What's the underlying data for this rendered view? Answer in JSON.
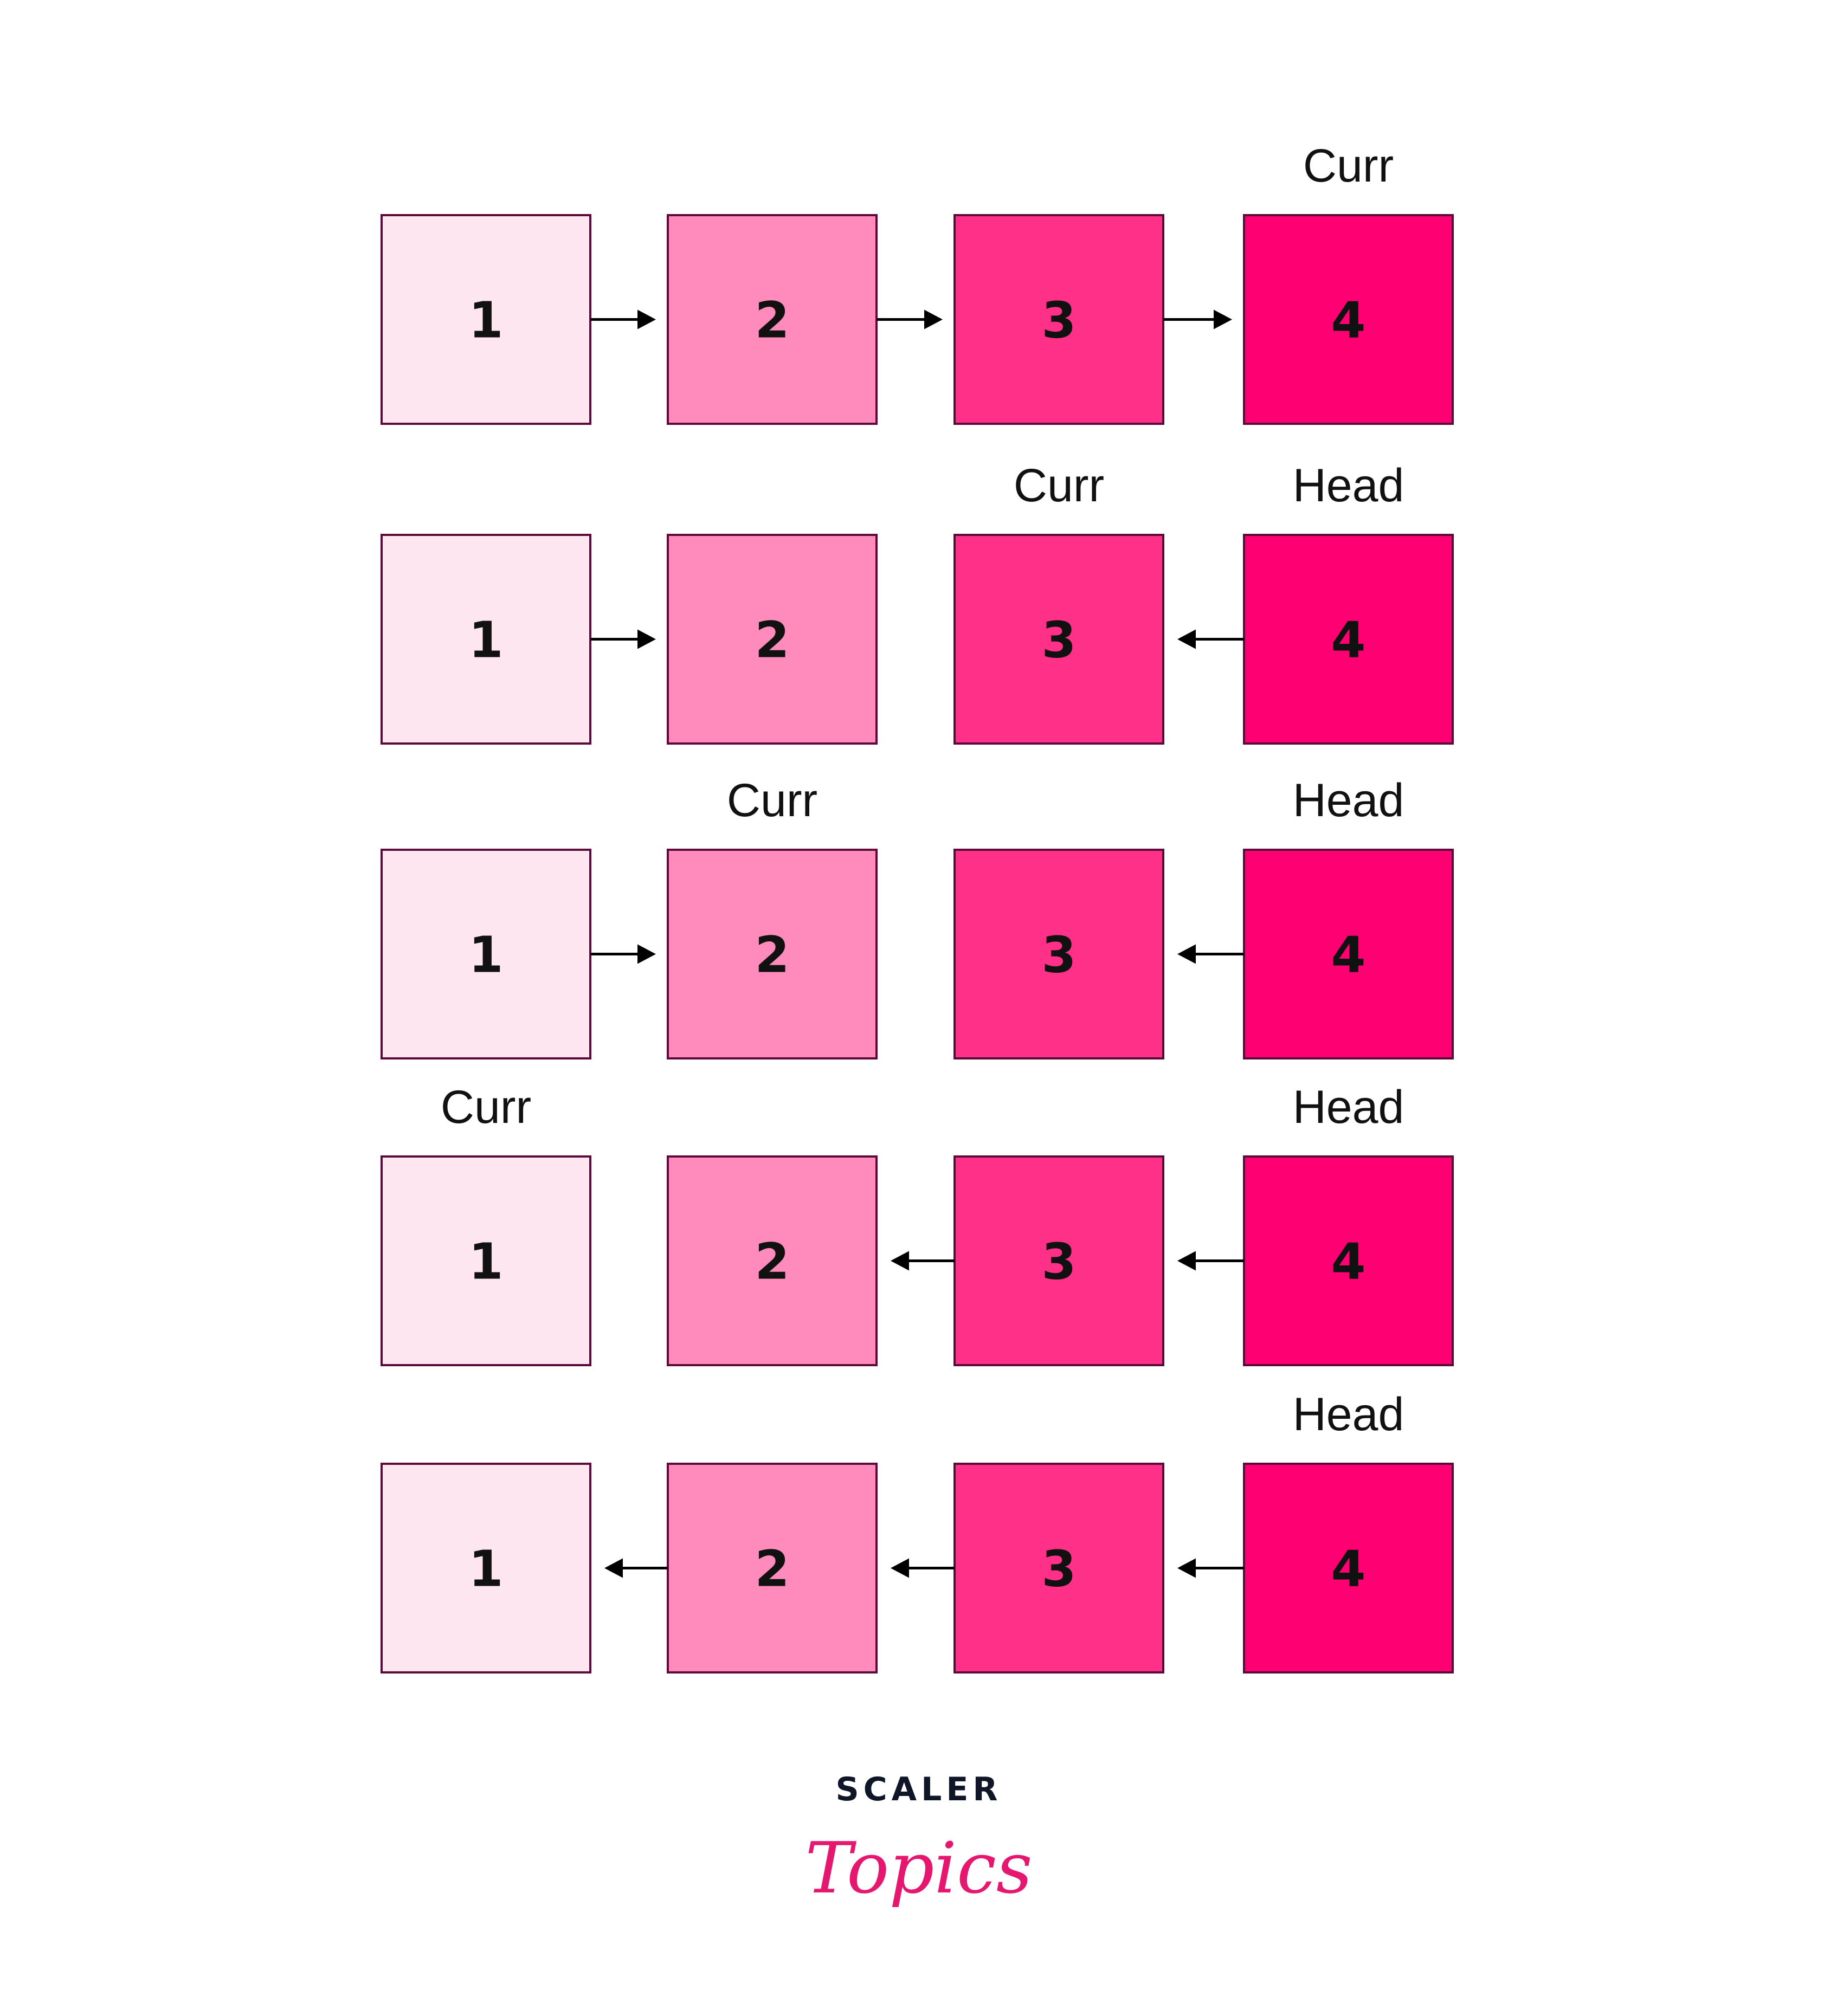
{
  "colors": {
    "node_fills": [
      "#fde6f0",
      "#fe8bbc",
      "#fe3088",
      "#ff0073"
    ],
    "node_border": "#5c0a3a",
    "arrow": "#000000",
    "logo_dark": "#0e1628",
    "logo_pink": "#e5176f"
  },
  "rows": [
    {
      "nodes": [
        "1",
        "2",
        "3",
        "4"
      ],
      "arrows": [
        "right",
        "right",
        "right"
      ],
      "labels": [
        "",
        "",
        "",
        "Curr"
      ]
    },
    {
      "nodes": [
        "1",
        "2",
        "3",
        "4"
      ],
      "arrows": [
        "right",
        "none",
        "left"
      ],
      "labels": [
        "",
        "",
        "Curr",
        "Head"
      ]
    },
    {
      "nodes": [
        "1",
        "2",
        "3",
        "4"
      ],
      "arrows": [
        "right",
        "none",
        "left"
      ],
      "labels": [
        "",
        "Curr",
        "",
        "Head"
      ]
    },
    {
      "nodes": [
        "1",
        "2",
        "3",
        "4"
      ],
      "arrows": [
        "none",
        "left",
        "left"
      ],
      "labels": [
        "Curr",
        "",
        "",
        "Head"
      ]
    },
    {
      "nodes": [
        "1",
        "2",
        "3",
        "4"
      ],
      "arrows": [
        "left",
        "left",
        "left"
      ],
      "labels": [
        "",
        "",
        "",
        "Head"
      ]
    }
  ],
  "logo": {
    "line1": "SCALER",
    "line2": "Topics"
  }
}
